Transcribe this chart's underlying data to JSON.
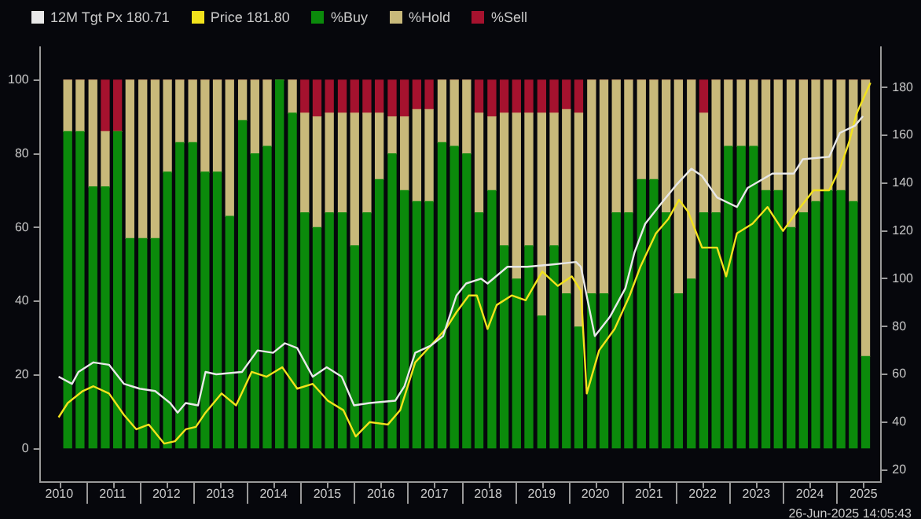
{
  "chart_data": {
    "type": "bar",
    "stacked": true,
    "legend": "top left",
    "grid": false,
    "annotations": [
      "26-Jun-2025 14:05:43"
    ],
    "xlim": [
      2010.14,
      2025.83
    ],
    "xticks": [
      {
        "value": 2010.5,
        "label": "2010"
      },
      {
        "value": 2011,
        "label": null
      },
      {
        "value": 2011.5,
        "label": "2011"
      },
      {
        "value": 2012,
        "label": null
      },
      {
        "value": 2012.5,
        "label": "2012"
      },
      {
        "value": 2013,
        "label": null
      },
      {
        "value": 2013.5,
        "label": "2013"
      },
      {
        "value": 2014,
        "label": null
      },
      {
        "value": 2014.5,
        "label": "2014"
      },
      {
        "value": 2015,
        "label": null
      },
      {
        "value": 2015.5,
        "label": "2015"
      },
      {
        "value": 2016,
        "label": null
      },
      {
        "value": 2016.5,
        "label": "2016"
      },
      {
        "value": 2017,
        "label": null
      },
      {
        "value": 2017.5,
        "label": "2017"
      },
      {
        "value": 2018,
        "label": null
      },
      {
        "value": 2018.5,
        "label": "2018"
      },
      {
        "value": 2019,
        "label": null
      },
      {
        "value": 2019.5,
        "label": "2019"
      },
      {
        "value": 2020,
        "label": null
      },
      {
        "value": 2020.5,
        "label": "2020"
      },
      {
        "value": 2021,
        "label": null
      },
      {
        "value": 2021.5,
        "label": "2021"
      },
      {
        "value": 2022,
        "label": null
      },
      {
        "value": 2022.5,
        "label": "2022"
      },
      {
        "value": 2023,
        "label": null
      },
      {
        "value": 2023.5,
        "label": "2023"
      },
      {
        "value": 2024,
        "label": null
      },
      {
        "value": 2024.5,
        "label": "2024"
      },
      {
        "value": 2025,
        "label": null
      },
      {
        "value": 2025.5,
        "label": "2025"
      }
    ],
    "ylim": [
      -9,
      109
    ],
    "yticks": [
      0,
      20,
      40,
      60,
      80,
      100
    ],
    "y2lim": [
      15,
      197
    ],
    "y2ticks": [
      20,
      40,
      60,
      80,
      100,
      120,
      140,
      160,
      180
    ],
    "x": [
      2010.66,
      2010.89,
      2011.13,
      2011.36,
      2011.59,
      2011.82,
      2012.06,
      2012.29,
      2012.52,
      2012.75,
      2012.99,
      2013.22,
      2013.45,
      2013.68,
      2013.92,
      2014.15,
      2014.38,
      2014.61,
      2014.85,
      2015.08,
      2015.31,
      2015.54,
      2015.78,
      2016.01,
      2016.24,
      2016.47,
      2016.71,
      2016.94,
      2017.17,
      2017.4,
      2017.64,
      2017.87,
      2018.1,
      2018.33,
      2018.57,
      2018.8,
      2019.03,
      2019.26,
      2019.5,
      2019.73,
      2019.96,
      2020.19,
      2020.43,
      2020.66,
      2020.89,
      2021.12,
      2021.36,
      2021.59,
      2021.82,
      2022.05,
      2022.29,
      2022.52,
      2022.75,
      2022.98,
      2023.22,
      2023.45,
      2023.68,
      2023.91,
      2024.15,
      2024.38,
      2024.61,
      2024.84,
      2025.08,
      2025.31,
      2025.54
    ],
    "series": [
      {
        "name": "12M Tgt Px 180.71",
        "type": "line",
        "axis": "y2",
        "color": "#e8e8e8",
        "x": [
          2010.49,
          2010.74,
          2010.86,
          2011.14,
          2011.43,
          2011.71,
          2012.0,
          2012.29,
          2012.57,
          2012.71,
          2012.86,
          2013.09,
          2013.23,
          2013.43,
          2013.91,
          2014.2,
          2014.49,
          2014.71,
          2014.94,
          2015.23,
          2015.49,
          2015.77,
          2016.0,
          2016.29,
          2016.77,
          2016.94,
          2017.14,
          2017.43,
          2017.66,
          2017.91,
          2018.09,
          2018.37,
          2018.49,
          2018.86,
          2019.23,
          2019.71,
          2020.14,
          2020.23,
          2020.49,
          2020.77,
          2021.06,
          2021.23,
          2021.43,
          2021.71,
          2022.0,
          2022.29,
          2022.49,
          2022.77,
          2023.14,
          2023.34,
          2023.8,
          2024.2,
          2024.37,
          2024.86,
          2025.06,
          2025.34,
          2025.49
        ],
        "values": [
          59,
          56,
          61,
          65,
          64,
          56,
          54,
          53,
          48,
          44,
          48,
          47,
          61,
          60,
          61,
          70,
          69,
          73,
          71,
          59,
          63,
          59,
          47,
          48,
          49,
          55,
          69,
          72,
          76,
          93,
          98,
          100,
          98,
          105,
          105,
          106,
          107,
          105,
          76,
          84,
          96,
          111,
          123,
          131,
          139,
          146,
          143,
          134,
          130,
          138,
          144,
          144,
          150,
          151,
          161,
          164,
          168
        ]
      },
      {
        "name": "Price 181.80",
        "type": "line",
        "axis": "y2",
        "color": "#f2e21c",
        "x": [
          2010.49,
          2010.66,
          2010.94,
          2011.14,
          2011.43,
          2011.71,
          2011.94,
          2012.17,
          2012.46,
          2012.66,
          2012.86,
          2013.05,
          2013.23,
          2013.53,
          2013.8,
          2014.09,
          2014.37,
          2014.66,
          2014.94,
          2015.23,
          2015.51,
          2015.8,
          2016.03,
          2016.29,
          2016.63,
          2016.86,
          2017.14,
          2017.43,
          2017.71,
          2017.91,
          2018.14,
          2018.29,
          2018.49,
          2018.66,
          2018.94,
          2019.2,
          2019.51,
          2019.8,
          2020.06,
          2020.23,
          2020.34,
          2020.57,
          2020.86,
          2021.14,
          2021.34,
          2021.63,
          2021.86,
          2022.06,
          2022.23,
          2022.49,
          2022.77,
          2022.94,
          2023.14,
          2023.43,
          2023.71,
          2024.0,
          2024.29,
          2024.57,
          2024.86,
          2025.06,
          2025.23,
          2025.37,
          2025.63
        ],
        "values": [
          42,
          48,
          53,
          55,
          52,
          43,
          37,
          39,
          31,
          32,
          37,
          38,
          44,
          52,
          47,
          61,
          59,
          63,
          54,
          56,
          49,
          45,
          34,
          40,
          39,
          45,
          65,
          72,
          79,
          86,
          93,
          93,
          79,
          89,
          93,
          91,
          103,
          97,
          101,
          95,
          52,
          70,
          79,
          93,
          105,
          119,
          125,
          133,
          128,
          113,
          113,
          101,
          119,
          123,
          130,
          120,
          129,
          137,
          137,
          146,
          157,
          169,
          182
        ]
      },
      {
        "name": "%Buy",
        "color": "#0b8a0b",
        "values": [
          86,
          86,
          71,
          71,
          86,
          57,
          57,
          57,
          75,
          83,
          83,
          75,
          75,
          63,
          89,
          80,
          82,
          100,
          91,
          64,
          60,
          64,
          64,
          55,
          64,
          73,
          80,
          70,
          67,
          67,
          83,
          82,
          80,
          64,
          70,
          55,
          46,
          55,
          36,
          55,
          42,
          33,
          42,
          42,
          64,
          64,
          73,
          73,
          64,
          42,
          46,
          64,
          64,
          82,
          82,
          82,
          70,
          70,
          60,
          64,
          67,
          70,
          70,
          67,
          25
        ]
      },
      {
        "name": "%Hold",
        "color": "#c8b97a",
        "values": [
          14,
          14,
          29,
          15,
          0,
          43,
          43,
          43,
          25,
          17,
          17,
          25,
          25,
          37,
          11,
          20,
          18,
          0,
          9,
          27,
          30,
          27,
          27,
          36,
          27,
          18,
          10,
          20,
          25,
          25,
          17,
          18,
          20,
          27,
          20,
          36,
          45,
          36,
          55,
          36,
          50,
          58,
          58,
          58,
          36,
          36,
          27,
          27,
          36,
          58,
          54,
          27,
          36,
          18,
          18,
          18,
          30,
          30,
          40,
          36,
          33,
          30,
          30,
          33,
          75
        ]
      },
      {
        "name": "%Sell",
        "color": "#a5122e",
        "values": [
          0,
          0,
          0,
          14,
          14,
          0,
          0,
          0,
          0,
          0,
          0,
          0,
          0,
          0,
          0,
          0,
          0,
          0,
          0,
          9,
          10,
          9,
          9,
          9,
          9,
          9,
          10,
          10,
          8,
          8,
          0,
          0,
          0,
          9,
          10,
          9,
          9,
          9,
          9,
          9,
          8,
          9,
          0,
          0,
          0,
          0,
          0,
          0,
          0,
          0,
          0,
          9,
          0,
          0,
          0,
          0,
          0,
          0,
          0,
          0,
          0,
          0,
          0,
          0,
          0
        ]
      }
    ]
  }
}
